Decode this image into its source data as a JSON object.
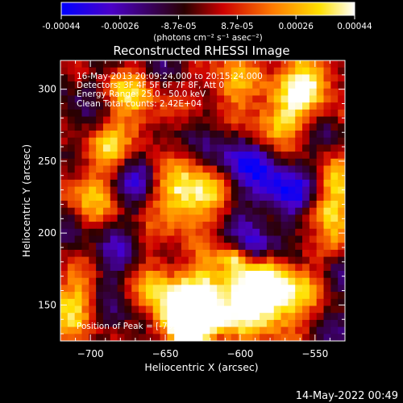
{
  "colorbar": {
    "tick_labels": [
      "-0.00044",
      "-0.00026",
      "-8.7e-05",
      "8.7e-05",
      "0.00026",
      "0.00044"
    ],
    "units": "(photons cm⁻² s⁻¹ asec⁻²)",
    "range": [
      -0.00044,
      0.00044
    ],
    "colormap": [
      "#0000ff",
      "#4b00c8",
      "#2a0000",
      "#cc0000",
      "#ff7a00",
      "#ffe000",
      "#ffffff"
    ]
  },
  "info": {
    "time_range": "16-May-2013 20:09:24.000 to 20:15:24.000",
    "detectors": "Detectors: 3F 4F 5F 6F 7F 8F, Att 0",
    "energy_range": "Energy Range: 25.0 - 50.0 keV",
    "method_counts": "Clean    Total counts: 2.42E+04",
    "peak_position": "Position of Peak = [-703,132]"
  },
  "footer": {
    "timestamp": "14-May-2022 00:49"
  },
  "chart_data": {
    "type": "heatmap",
    "title": "Reconstructed RHESSI Image",
    "xlabel": "Heliocentric X (arcsec)",
    "ylabel": "Heliocentric Y (arcsec)",
    "xlim": [
      -720,
      -530
    ],
    "ylim": [
      125,
      320
    ],
    "x_ticks": [
      -700,
      -650,
      -600,
      -550
    ],
    "y_ticks": [
      150,
      200,
      250,
      300
    ],
    "x_tick_labels": [
      "−700",
      "−650",
      "−600",
      "−550"
    ],
    "y_tick_labels": [
      "150",
      "200",
      "250",
      "300"
    ],
    "grid": false,
    "peak": [
      -703,
      132
    ],
    "grid_size": [
      40,
      40
    ],
    "z_range": [
      -0.00044,
      0.00044
    ]
  }
}
